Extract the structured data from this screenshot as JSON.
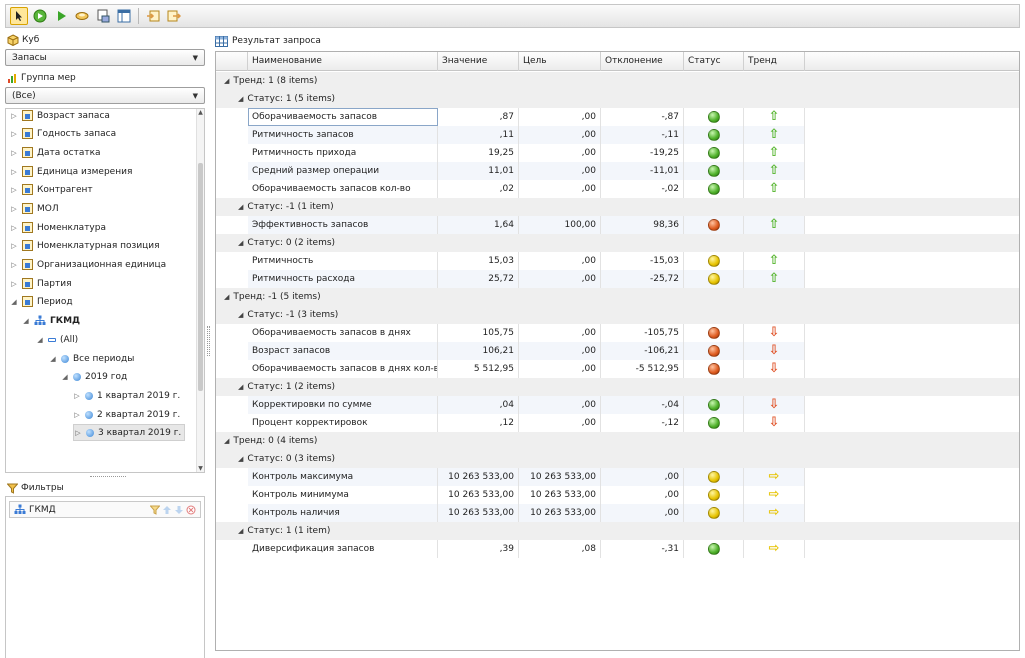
{
  "toolbar": {
    "buttons": [
      "pointer-icon",
      "run-icon",
      "play-icon",
      "cube-icon",
      "print-icon",
      "layout-icon",
      "import-icon",
      "export-icon"
    ]
  },
  "left": {
    "cube_caption": "Куб",
    "cube_value": "Запасы",
    "measure_group_caption": "Группа мер",
    "measure_group_value": "(Все)",
    "tree": [
      {
        "label": "Возраст запаса"
      },
      {
        "label": "Годность запаса"
      },
      {
        "label": "Дата остатка"
      },
      {
        "label": "Единица измерения"
      },
      {
        "label": "Контрагент"
      },
      {
        "label": "МОЛ"
      },
      {
        "label": "Номенклатура"
      },
      {
        "label": "Номенклатурная позиция"
      },
      {
        "label": "Организационная единица"
      },
      {
        "label": "Партия"
      },
      {
        "label": "Период"
      },
      {
        "label": "ГКМД"
      },
      {
        "label": "(All)"
      },
      {
        "label": "Все периоды"
      },
      {
        "label": "2019 год"
      },
      {
        "label": "1 квартал 2019 г."
      },
      {
        "label": "2 квартал 2019 г."
      },
      {
        "label": "3 квартал 2019 г."
      }
    ],
    "filters_caption": "Фильтры",
    "filter_item": "ГКМД"
  },
  "result": {
    "caption": "Результат запроса",
    "columns": [
      "Наименование",
      "Значение",
      "Цель",
      "Отклонение",
      "Статус",
      "Тренд"
    ],
    "groups": [
      {
        "label": "Тренд: 1 (8 items)",
        "subgroups": [
          {
            "label": "Статус: 1 (5 items)",
            "rows": [
              {
                "name": "Оборачиваемость запасов",
                "value": ",87",
                "goal": ",00",
                "dev": "-,87",
                "status": "green",
                "trend": "up"
              },
              {
                "name": "Ритмичность запасов",
                "value": ",11",
                "goal": ",00",
                "dev": "-,11",
                "status": "green",
                "trend": "up"
              },
              {
                "name": "Ритмичность прихода",
                "value": "19,25",
                "goal": ",00",
                "dev": "-19,25",
                "status": "green",
                "trend": "up"
              },
              {
                "name": "Средний размер операции",
                "value": "11,01",
                "goal": ",00",
                "dev": "-11,01",
                "status": "green",
                "trend": "up"
              },
              {
                "name": "Оборачиваемость запасов кол-во",
                "value": ",02",
                "goal": ",00",
                "dev": "-,02",
                "status": "green",
                "trend": "up"
              }
            ]
          },
          {
            "label": "Статус: -1 (1 item)",
            "rows": [
              {
                "name": "Эффективность запасов",
                "value": "1,64",
                "goal": "100,00",
                "dev": "98,36",
                "status": "red",
                "trend": "up"
              }
            ]
          },
          {
            "label": "Статус: 0 (2 items)",
            "rows": [
              {
                "name": "Ритмичность",
                "value": "15,03",
                "goal": ",00",
                "dev": "-15,03",
                "status": "yellow",
                "trend": "up"
              },
              {
                "name": "Ритмичность расхода",
                "value": "25,72",
                "goal": ",00",
                "dev": "-25,72",
                "status": "yellow",
                "trend": "up"
              }
            ]
          }
        ]
      },
      {
        "label": "Тренд: -1 (5 items)",
        "subgroups": [
          {
            "label": "Статус: -1 (3 items)",
            "rows": [
              {
                "name": "Оборачиваемость запасов в днях",
                "value": "105,75",
                "goal": ",00",
                "dev": "-105,75",
                "status": "red",
                "trend": "down"
              },
              {
                "name": "Возраст запасов",
                "value": "106,21",
                "goal": ",00",
                "dev": "-106,21",
                "status": "red",
                "trend": "down"
              },
              {
                "name": "Оборачиваемость запасов в днях кол-в",
                "value": "5 512,95",
                "goal": ",00",
                "dev": "-5 512,95",
                "status": "red",
                "trend": "down"
              }
            ]
          },
          {
            "label": "Статус: 1 (2 items)",
            "rows": [
              {
                "name": "Корректировки по сумме",
                "value": ",04",
                "goal": ",00",
                "dev": "-,04",
                "status": "green",
                "trend": "down"
              },
              {
                "name": "Процент корректировок",
                "value": ",12",
                "goal": ",00",
                "dev": "-,12",
                "status": "green",
                "trend": "down"
              }
            ]
          }
        ]
      },
      {
        "label": "Тренд: 0 (4 items)",
        "subgroups": [
          {
            "label": "Статус: 0 (3 items)",
            "rows": [
              {
                "name": "Контроль максимума",
                "value": "10 263 533,00",
                "goal": "10 263 533,00",
                "dev": ",00",
                "status": "yellow",
                "trend": "right"
              },
              {
                "name": "Контроль минимума",
                "value": "10 263 533,00",
                "goal": "10 263 533,00",
                "dev": ",00",
                "status": "yellow",
                "trend": "right"
              },
              {
                "name": "Контроль наличия",
                "value": "10 263 533,00",
                "goal": "10 263 533,00",
                "dev": ",00",
                "status": "yellow",
                "trend": "right"
              }
            ]
          },
          {
            "label": "Статус: 1 (1 item)",
            "rows": [
              {
                "name": "Диверсификация запасов",
                "value": ",39",
                "goal": ",08",
                "dev": "-,31",
                "status": "green",
                "trend": "right"
              }
            ]
          }
        ]
      }
    ]
  }
}
